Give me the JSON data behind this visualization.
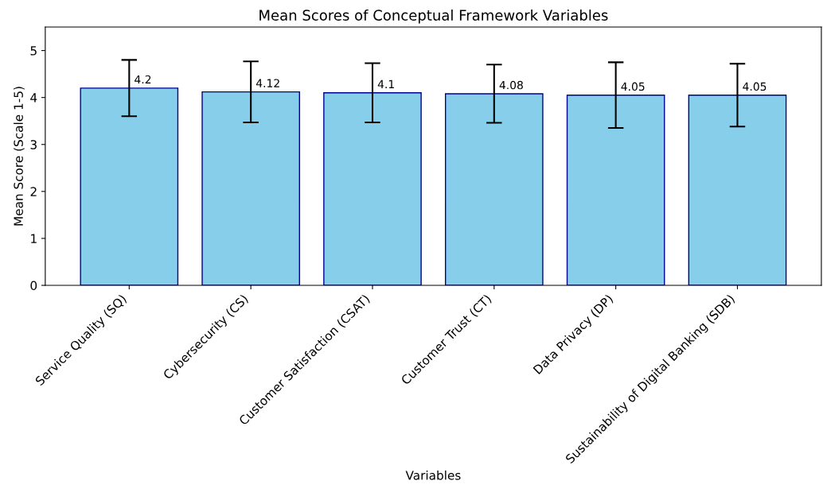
{
  "chart_data": {
    "type": "bar",
    "title": "Mean Scores of Conceptual Framework Variables",
    "xlabel": "Variables",
    "ylabel": "Mean Score (Scale 1-5)",
    "categories": [
      "Service Quality (SQ)",
      "Cybersecurity (CS)",
      "Customer Satisfaction (CSAT)",
      "Customer Trust (CT)",
      "Data Privacy (DP)",
      "Sustainability of Digital Banking (SDB)"
    ],
    "values": [
      4.2,
      4.12,
      4.1,
      4.08,
      4.05,
      4.05
    ],
    "errors": [
      0.6,
      0.65,
      0.63,
      0.62,
      0.7,
      0.67
    ],
    "color": "#87ceeb",
    "data_labels": true,
    "ylim": [
      0,
      5.5
    ],
    "yticks": [
      0,
      1,
      2,
      3,
      4,
      5
    ],
    "grid": false
  }
}
